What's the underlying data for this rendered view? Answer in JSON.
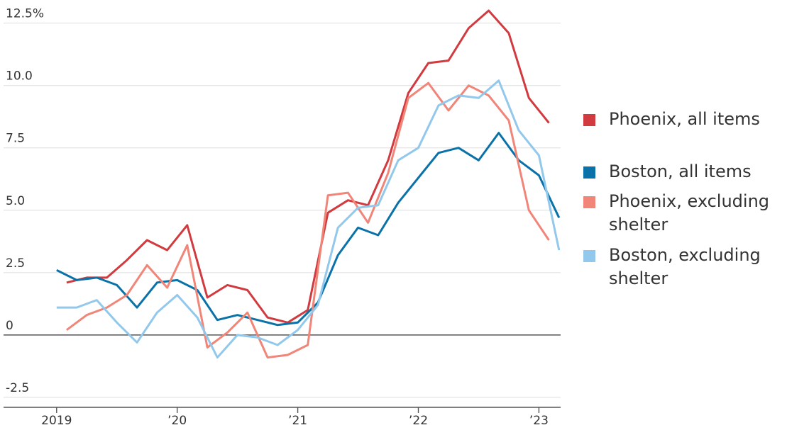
{
  "chart_data": {
    "type": "line",
    "xlim": [
      2018.56,
      2023.18
    ],
    "xticks": [
      {
        "value": 2019,
        "label": "2019"
      },
      {
        "value": 2020,
        "label": "’20"
      },
      {
        "value": 2021,
        "label": "’21"
      },
      {
        "value": 2022,
        "label": "’22"
      },
      {
        "value": 2023,
        "label": "’23"
      }
    ],
    "ylim": [
      -2.9,
      13.2
    ],
    "yticks": [
      {
        "value": -2.5,
        "label": "-2.5"
      },
      0,
      2.5,
      {
        "value": 5,
        "label": "5.0"
      },
      7.5,
      {
        "value": 10,
        "label": "10.0"
      },
      {
        "value": 12.5,
        "label": "12.5%"
      }
    ],
    "grid": true,
    "series": [
      {
        "name": "Phoenix, all items",
        "color": "#d13a3f",
        "x": [
          2019.083,
          2019.25,
          2019.417,
          2019.583,
          2019.75,
          2019.917,
          2020.083,
          2020.25,
          2020.417,
          2020.583,
          2020.75,
          2020.917,
          2021.083,
          2021.25,
          2021.417,
          2021.583,
          2021.75,
          2021.917,
          2022.083,
          2022.25,
          2022.417,
          2022.583,
          2022.75,
          2022.917,
          2023.083
        ],
        "values": [
          2.1,
          2.3,
          2.3,
          3.0,
          3.8,
          3.4,
          4.4,
          1.5,
          2.0,
          1.8,
          0.7,
          0.5,
          1.0,
          4.9,
          5.4,
          5.2,
          7.0,
          9.7,
          10.9,
          11.0,
          12.3,
          13.0,
          12.1,
          9.5,
          8.5
        ]
      },
      {
        "name": "Boston, all items",
        "color": "#0a72a8",
        "x": [
          2019.0,
          2019.167,
          2019.333,
          2019.5,
          2019.667,
          2019.833,
          2020.0,
          2020.167,
          2020.333,
          2020.5,
          2020.667,
          2020.833,
          2021.0,
          2021.167,
          2021.333,
          2021.5,
          2021.667,
          2021.833,
          2022.0,
          2022.167,
          2022.333,
          2022.5,
          2022.667,
          2022.833,
          2023.0,
          2023.167
        ],
        "values": [
          2.6,
          2.2,
          2.3,
          2.0,
          1.1,
          2.1,
          2.2,
          1.8,
          0.6,
          0.8,
          0.6,
          0.4,
          0.5,
          1.3,
          3.2,
          4.3,
          4.0,
          5.3,
          6.3,
          7.3,
          7.5,
          7.0,
          8.1,
          7.0,
          6.4,
          4.7
        ]
      },
      {
        "name": "Phoenix, excluding shelter",
        "color": "#f08578",
        "x": [
          2019.083,
          2019.25,
          2019.417,
          2019.583,
          2019.75,
          2019.917,
          2020.083,
          2020.25,
          2020.417,
          2020.583,
          2020.75,
          2020.917,
          2021.083,
          2021.25,
          2021.417,
          2021.583,
          2021.75,
          2021.917,
          2022.083,
          2022.25,
          2022.417,
          2022.583,
          2022.75,
          2022.917,
          2023.083
        ],
        "values": [
          0.2,
          0.8,
          1.1,
          1.6,
          2.8,
          1.9,
          3.6,
          -0.5,
          0.1,
          0.9,
          -0.9,
          -0.8,
          -0.4,
          5.6,
          5.7,
          4.5,
          6.5,
          9.5,
          10.1,
          9.0,
          10.0,
          9.6,
          8.6,
          5.0,
          3.8
        ]
      },
      {
        "name": "Boston, excluding shelter",
        "color": "#92c8ec",
        "x": [
          2019.0,
          2019.167,
          2019.333,
          2019.5,
          2019.667,
          2019.833,
          2020.0,
          2020.167,
          2020.333,
          2020.5,
          2020.667,
          2020.833,
          2021.0,
          2021.167,
          2021.333,
          2021.5,
          2021.667,
          2021.833,
          2022.0,
          2022.167,
          2022.333,
          2022.5,
          2022.667,
          2022.833,
          2023.0,
          2023.167
        ],
        "values": [
          1.1,
          1.1,
          1.4,
          0.5,
          -0.3,
          0.9,
          1.6,
          0.7,
          -0.9,
          0.0,
          -0.1,
          -0.4,
          0.2,
          1.2,
          4.3,
          5.1,
          5.2,
          7.0,
          7.5,
          9.2,
          9.6,
          9.5,
          10.2,
          8.2,
          7.2,
          3.4
        ]
      }
    ]
  }
}
